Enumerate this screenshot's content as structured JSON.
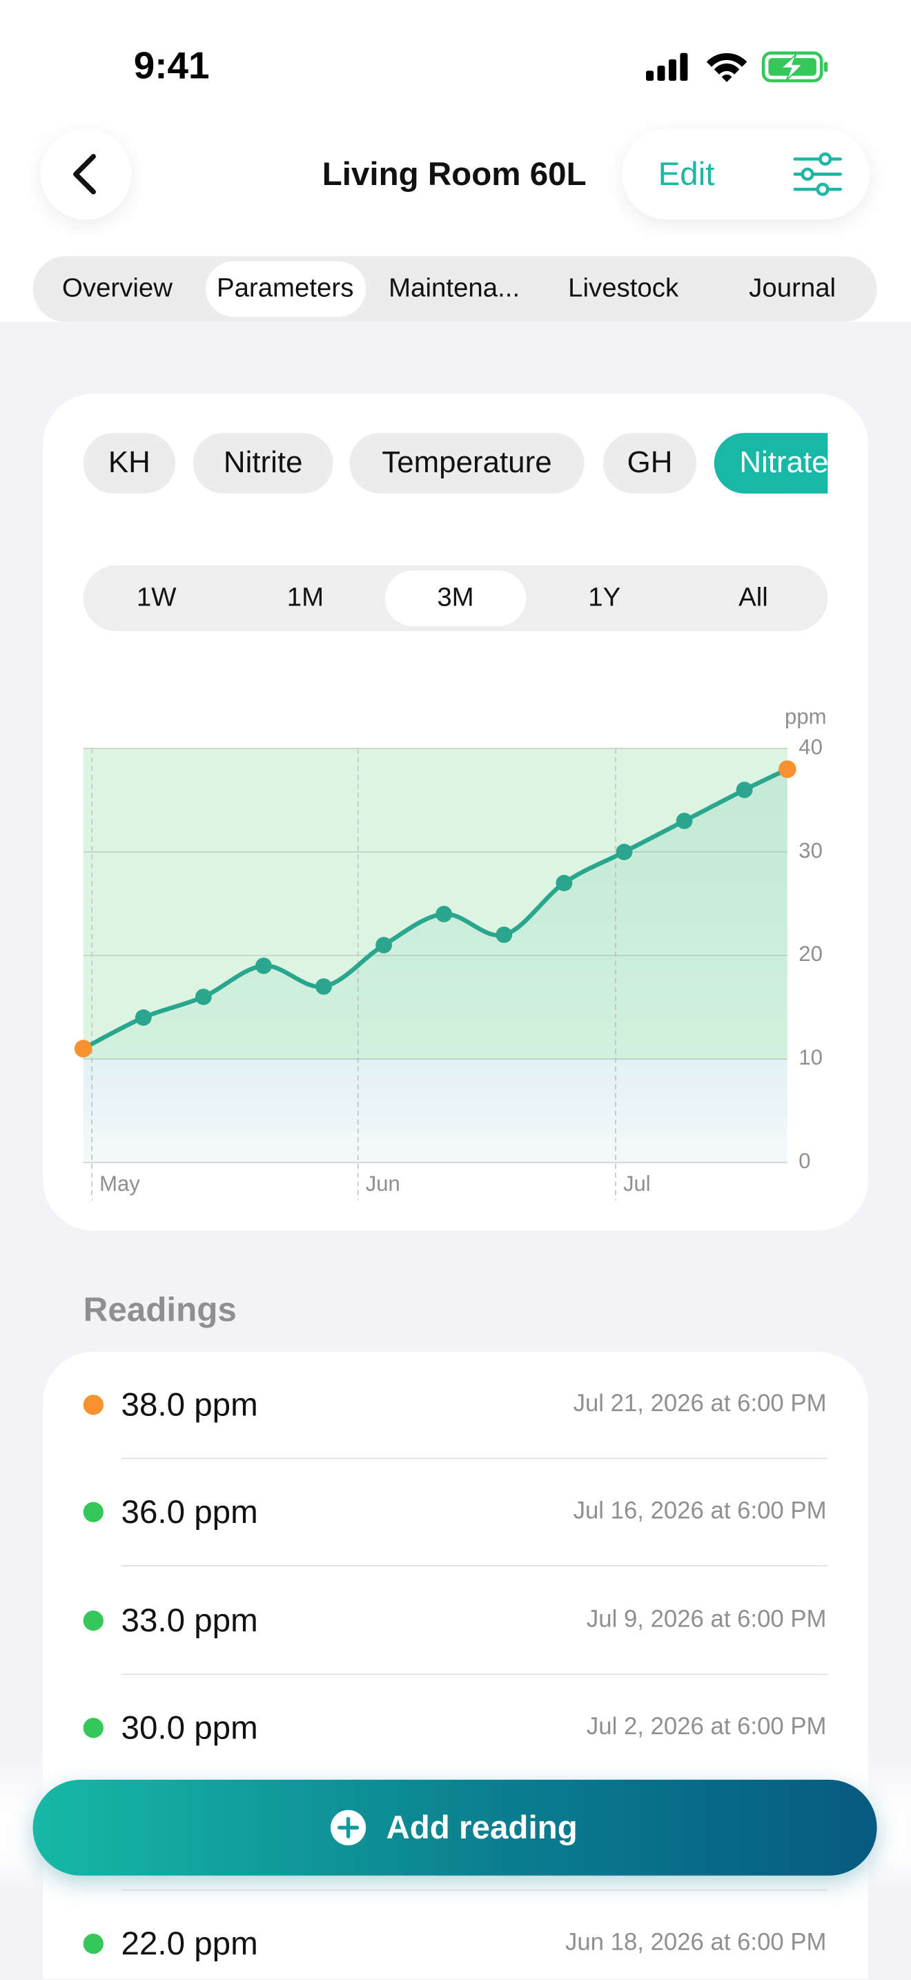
{
  "status_bar": {
    "time": "9:41"
  },
  "header": {
    "title": "Living Room 60L",
    "edit": "Edit"
  },
  "tabs": [
    "Overview",
    "Parameters",
    "Maintena...",
    "Livestock",
    "Journal"
  ],
  "selected_tab": 1,
  "parameters": [
    "KH",
    "Nitrite",
    "Temperature",
    "GH",
    "Nitrate"
  ],
  "selected_parameter": 4,
  "ranges": [
    "1W",
    "1M",
    "3M",
    "1Y",
    "All"
  ],
  "selected_range": 2,
  "chart_data": {
    "type": "line",
    "y_unit": "ppm",
    "x": [
      "2026-04-30",
      "2026-05-07",
      "2026-05-14",
      "2026-05-21",
      "2026-05-28",
      "2026-06-04",
      "2026-06-11",
      "2026-06-18",
      "2026-06-25",
      "2026-07-02",
      "2026-07-09",
      "2026-07-16",
      "2026-07-21"
    ],
    "series": [
      {
        "name": "Nitrate",
        "color": "#2aa68e",
        "endpoint_color": "#f7922f",
        "values": [
          11,
          14,
          16,
          19,
          17,
          21,
          24,
          22,
          27,
          30,
          33,
          36,
          38
        ]
      }
    ],
    "xlim": [
      "2026-04-30",
      "2026-07-21"
    ],
    "xticks": [
      {
        "value": "2026-05-01",
        "label": "May"
      },
      {
        "value": "2026-06-01",
        "label": "Jun"
      },
      {
        "value": "2026-07-01",
        "label": "Jul"
      }
    ],
    "ylim": [
      0,
      40
    ],
    "yticks": [
      0,
      10,
      20,
      30,
      40
    ],
    "target_range": [
      10,
      40
    ],
    "target_color": "#dcf5e2",
    "grid": true
  },
  "readings_title": "Readings",
  "readings": [
    {
      "value": "38.0 ppm",
      "date": "Jul 21, 2026 at 6:00 PM",
      "color": "#f7922f"
    },
    {
      "value": "36.0 ppm",
      "date": "Jul 16, 2026 at 6:00 PM",
      "color": "#34c759"
    },
    {
      "value": "33.0 ppm",
      "date": "Jul 9, 2026 at 6:00 PM",
      "color": "#34c759"
    },
    {
      "value": "30.0 ppm",
      "date": "Jul 2, 2026 at 6:00 PM",
      "color": "#34c759"
    },
    {
      "value": "22.0 ppm",
      "date": "Jun 18, 2026 at 6:00 PM",
      "color": "#34c759"
    }
  ],
  "add_button": "Add reading"
}
